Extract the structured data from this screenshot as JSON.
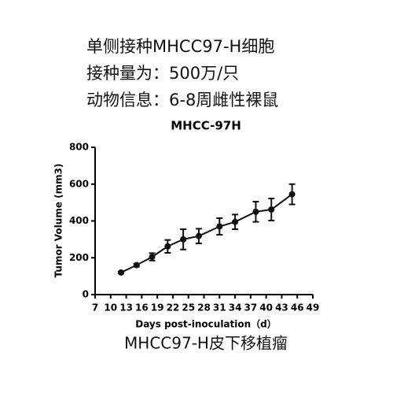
{
  "header": {
    "lines": [
      "单侧接种MHCC97-H细胞",
      "接种量为：500万/只",
      "动物信息：6-8周雌性裸鼠"
    ]
  },
  "chart_data": {
    "type": "line",
    "title": "MHCC-97H",
    "xlabel": "Days post-inoculation（d）",
    "ylabel": "Tumor Volume (mm3)",
    "x": [
      12,
      15,
      18,
      21,
      24,
      27,
      31,
      34,
      38,
      41,
      45
    ],
    "series": [
      {
        "name": "MHCC97-H",
        "color": "#111111",
        "values": [
          120,
          160,
          205,
          262,
          300,
          318,
          370,
          395,
          450,
          462,
          545
        ],
        "errors": [
          5,
          8,
          20,
          35,
          55,
          40,
          45,
          40,
          55,
          60,
          55
        ]
      }
    ],
    "xlim": [
      7,
      49
    ],
    "xticks": [
      7,
      10,
      13,
      16,
      19,
      22,
      25,
      28,
      31,
      34,
      37,
      40,
      43,
      46,
      49
    ],
    "ylim": [
      0,
      800
    ],
    "yticks": [
      0,
      200,
      400,
      600,
      800
    ]
  },
  "caption": "MHCC97-H皮下移植瘤"
}
